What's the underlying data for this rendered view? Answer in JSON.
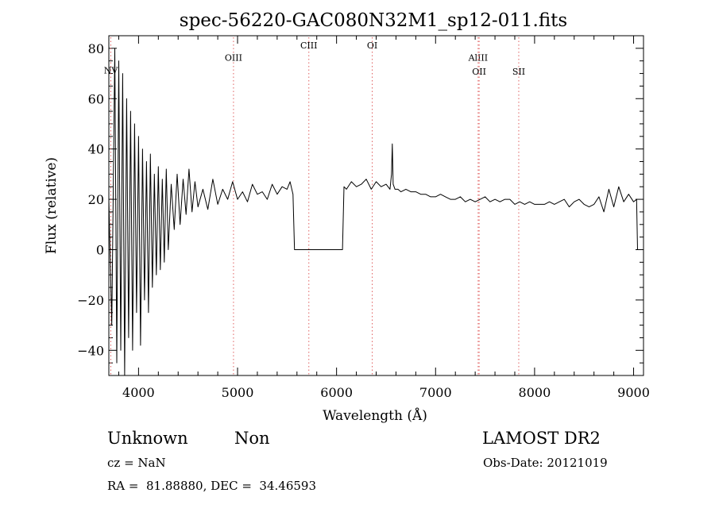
{
  "chart_data": {
    "type": "line",
    "title": "spec-56220-GAC080N32M1_sp12-011.fits",
    "xlabel": "Wavelength (Å)",
    "ylabel": "Flux (relative)",
    "xlim": [
      3700,
      9100
    ],
    "ylim": [
      -50,
      85
    ],
    "xticks": [
      4000,
      5000,
      6000,
      7000,
      8000,
      9000
    ],
    "xtick_labels": [
      "4000",
      "5000",
      "6000",
      "7000",
      "8000",
      "9000"
    ],
    "yticks": [
      -40,
      -20,
      0,
      20,
      40,
      60,
      80
    ],
    "ytick_labels": [
      "-40",
      "-20",
      "0",
      "20",
      "40",
      "60",
      "80"
    ],
    "grid": false,
    "line_color": "#000000",
    "marker_color": "#e06060",
    "series": [
      {
        "x": [
          3700,
          3730,
          3760,
          3780,
          3800,
          3820,
          3840,
          3860,
          3880,
          3900,
          3920,
          3940,
          3960,
          3980,
          4000,
          4020,
          4040,
          4060,
          4080,
          4100,
          4120,
          4140,
          4160,
          4180,
          4200,
          4220,
          4240,
          4260,
          4280,
          4300,
          4330,
          4360,
          4390,
          4420,
          4450,
          4480,
          4510,
          4540,
          4570,
          4600,
          4650,
          4700,
          4750,
          4800,
          4850,
          4900,
          4950,
          5000,
          5050,
          5100,
          5150,
          5200,
          5250,
          5300,
          5350,
          5400,
          5450,
          5500,
          5530,
          5560,
          5575,
          5590,
          6060,
          6075,
          6100,
          6150,
          6200,
          6250,
          6300,
          6350,
          6400,
          6450,
          6500,
          6540,
          6555,
          6563,
          6572,
          6590,
          6620,
          6650,
          6700,
          6750,
          6800,
          6850,
          6900,
          6950,
          7000,
          7050,
          7100,
          7150,
          7200,
          7250,
          7300,
          7350,
          7400,
          7450,
          7500,
          7550,
          7600,
          7650,
          7700,
          7750,
          7800,
          7850,
          7900,
          7950,
          8000,
          8050,
          8100,
          8150,
          8200,
          8250,
          8300,
          8350,
          8400,
          8450,
          8500,
          8550,
          8600,
          8650,
          8700,
          8750,
          8800,
          8850,
          8900,
          8950,
          9000,
          9030,
          9040
        ],
        "y": [
          20,
          -30,
          80,
          -45,
          75,
          -40,
          70,
          -50,
          60,
          -35,
          55,
          -40,
          50,
          -25,
          45,
          -38,
          40,
          -20,
          35,
          -25,
          38,
          -15,
          30,
          -10,
          33,
          -8,
          28,
          -5,
          32,
          0,
          26,
          8,
          30,
          10,
          28,
          14,
          32,
          15,
          27,
          17,
          24,
          16,
          28,
          18,
          24,
          20,
          27,
          20,
          23,
          19,
          26,
          22,
          23,
          20,
          26,
          22,
          25,
          24,
          27,
          22,
          0,
          0,
          0,
          25,
          24,
          27,
          25,
          26,
          28,
          24,
          27,
          25,
          26,
          24,
          30,
          42,
          26,
          24,
          24,
          23,
          24,
          23,
          23,
          22,
          22,
          21,
          21,
          22,
          21,
          20,
          20,
          21,
          19,
          20,
          19,
          20,
          21,
          19,
          20,
          19,
          20,
          20,
          18,
          19,
          18,
          19,
          18,
          18,
          18,
          19,
          18,
          19,
          20,
          17,
          19,
          20,
          18,
          17,
          18,
          21,
          15,
          24,
          17,
          25,
          19,
          22,
          19,
          20,
          0
        ]
      }
    ],
    "line_markers": [
      {
        "label": "NV",
        "x": 3720,
        "label_y": 70
      },
      {
        "label": "OIII",
        "x": 4959,
        "label_y": 75
      },
      {
        "label": "CIII",
        "x": 5720,
        "label_y": 80
      },
      {
        "label": "OI",
        "x": 6360,
        "label_y": 80
      },
      {
        "label": "AlIII",
        "x": 7430,
        "label_y": 75
      },
      {
        "label": "OII",
        "x": 7440,
        "label_y": 69.5
      },
      {
        "label": "SII",
        "x": 7840,
        "label_y": 69.5
      }
    ]
  },
  "info": {
    "class_label": "Unknown",
    "subclass_label": "Non",
    "cz_text": "cz = NaN",
    "coords_text": "RA =  81.88880, DEC =  34.46593",
    "survey_text": "LAMOST DR2",
    "obsdate_text": "Obs-Date: 20121019"
  }
}
